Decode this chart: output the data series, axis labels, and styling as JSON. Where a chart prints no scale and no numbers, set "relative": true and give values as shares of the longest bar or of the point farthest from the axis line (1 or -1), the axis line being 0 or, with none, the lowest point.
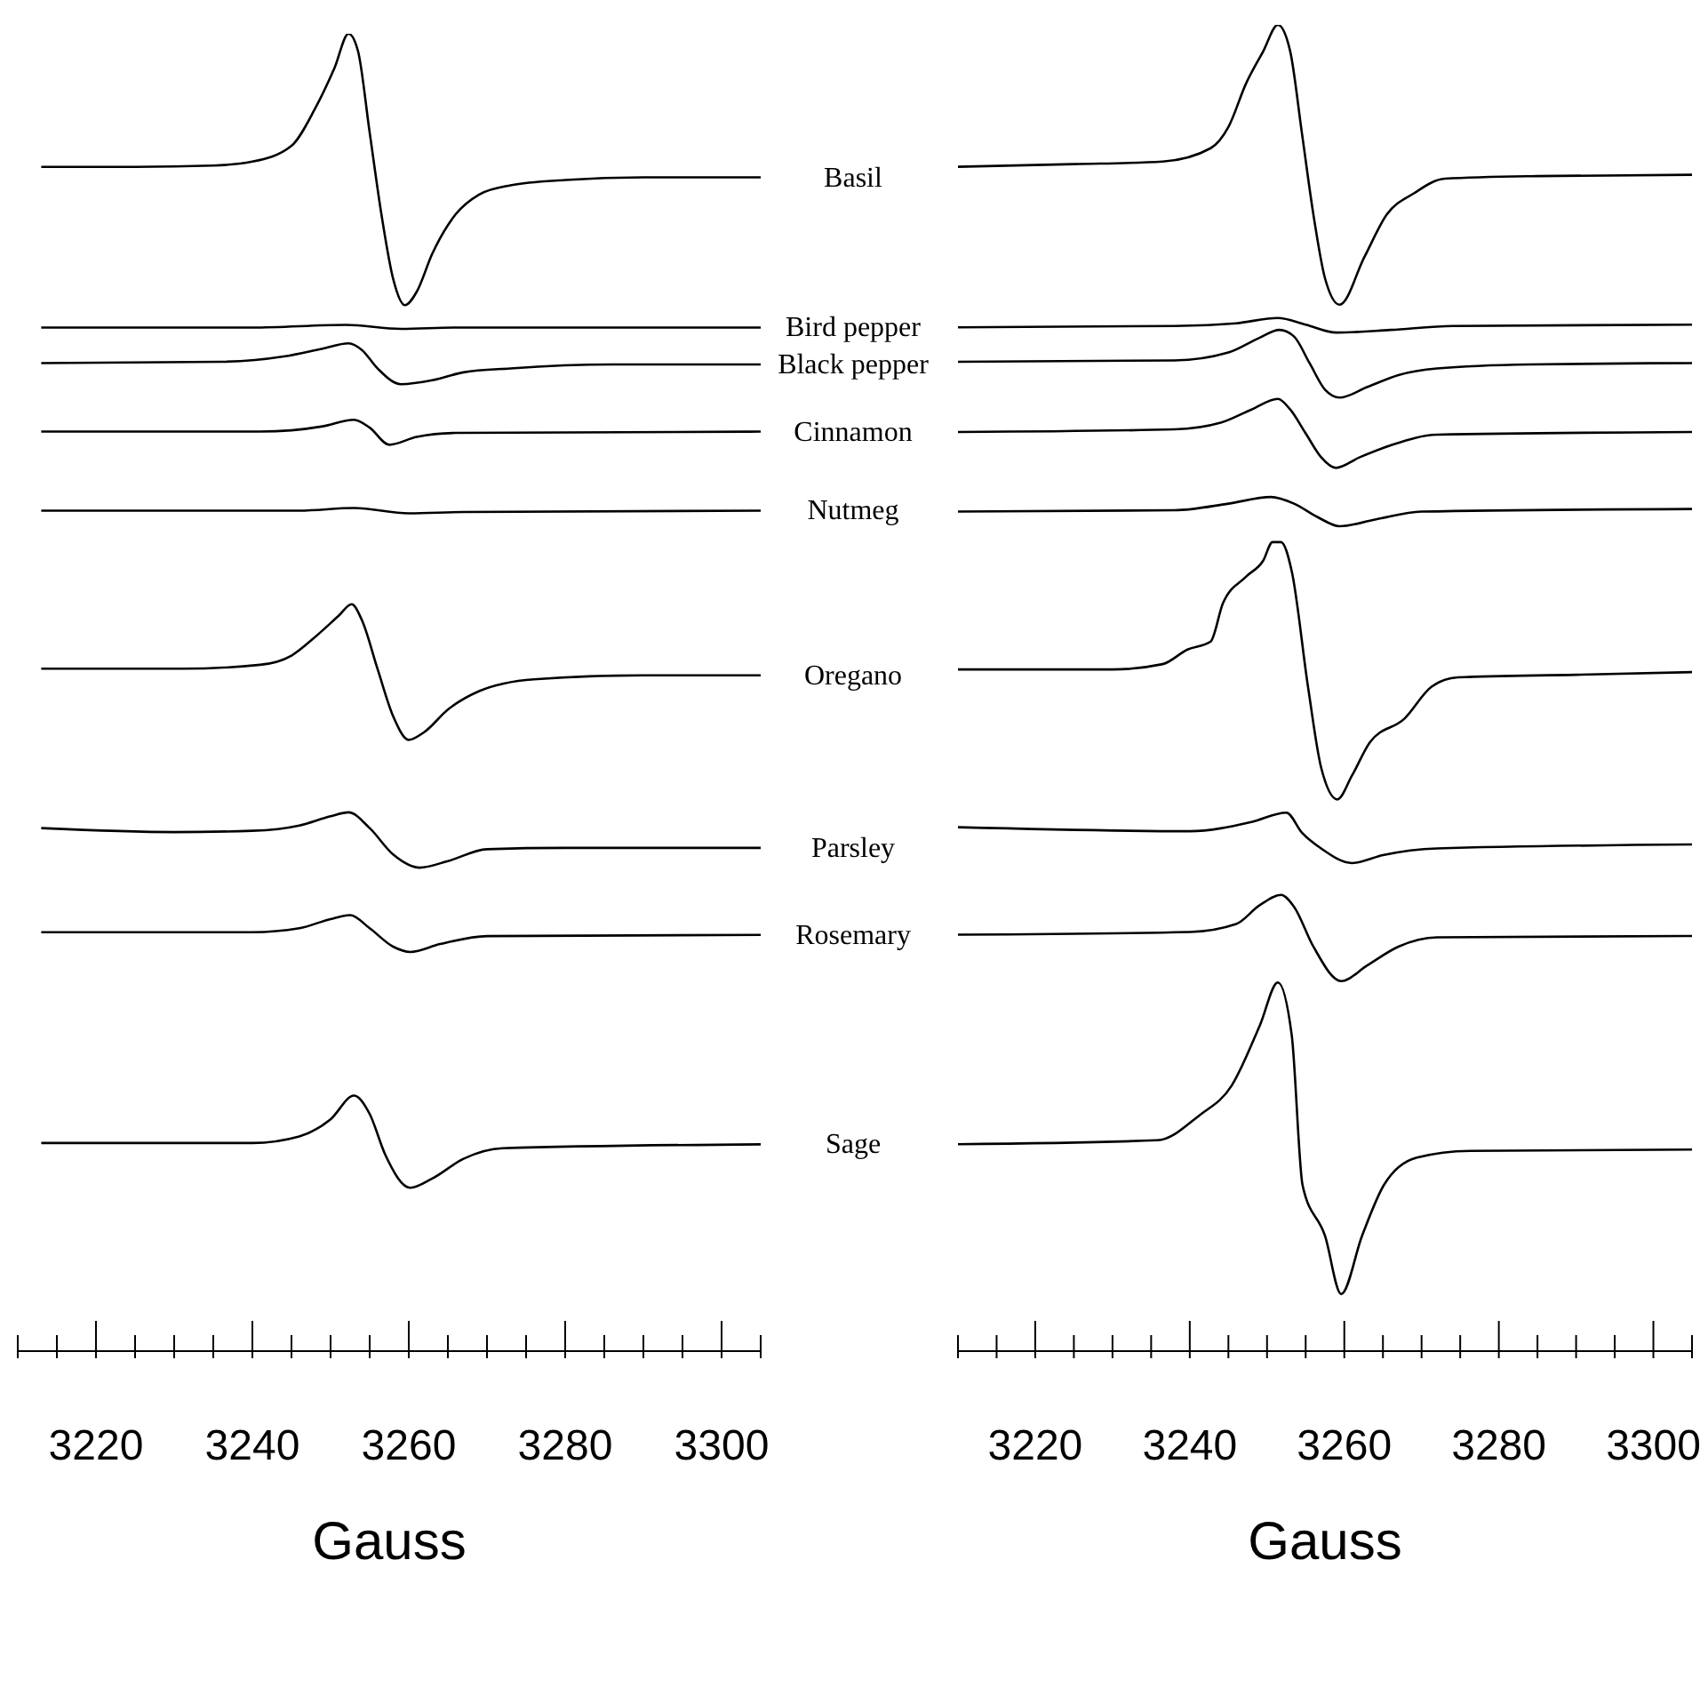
{
  "chart_data": [
    {
      "type": "line",
      "relative": true,
      "xlabel": "Gauss",
      "xlim": [
        3210,
        3305
      ],
      "tick_labels": "x",
      "xticks": [
        {
          "value": 3210,
          "label": null
        },
        {
          "value": 3215,
          "label": null
        },
        3220,
        {
          "value": 3225,
          "label": null
        },
        {
          "value": 3230,
          "label": null
        },
        {
          "value": 3235,
          "label": null
        },
        3240,
        {
          "value": 3245,
          "label": null
        },
        {
          "value": 3250,
          "label": null
        },
        {
          "value": 3255,
          "label": null
        },
        3260,
        {
          "value": 3265,
          "label": null
        },
        {
          "value": 3270,
          "label": null
        },
        {
          "value": 3275,
          "label": null
        },
        3280,
        {
          "value": 3285,
          "label": null
        },
        {
          "value": 3290,
          "label": null
        },
        {
          "value": 3295,
          "label": null
        },
        3300,
        {
          "value": 3305,
          "label": null
        }
      ],
      "series": [
        {
          "name": "Basil",
          "color": "#000000",
          "x": [
            3213,
            3225,
            3235,
            3240,
            3245,
            3248,
            3250.5,
            3252.3,
            3253.5,
            3255,
            3256.5,
            3258,
            3259.5,
            3261,
            3263,
            3266,
            3269,
            3273,
            3280,
            3290,
            3305
          ],
          "values": [
            0.899,
            0.899,
            0.9,
            0.903,
            0.915,
            0.943,
            0.974,
            1,
            0.987,
            0.925,
            0.863,
            0.814,
            0.794,
            0.804,
            0.833,
            0.863,
            0.878,
            0.885,
            0.889,
            0.891,
            0.891
          ]
        },
        {
          "name": "Bird pepper",
          "color": "#000000",
          "x": [
            3213,
            3240,
            3252,
            3259,
            3266,
            3305
          ],
          "values": [
            0.777,
            0.777,
            0.779,
            0.776,
            0.777,
            0.777
          ]
        },
        {
          "name": "Black pepper",
          "color": "#000000",
          "x": [
            3213,
            3236,
            3244,
            3249,
            3252.3,
            3254,
            3256,
            3259,
            3263,
            3267,
            3273,
            3286,
            3305
          ],
          "values": [
            0.75,
            0.751,
            0.755,
            0.761,
            0.765,
            0.76,
            0.746,
            0.734,
            0.737,
            0.743,
            0.746,
            0.749,
            0.749
          ]
        },
        {
          "name": "Cinnamon",
          "color": "#000000",
          "x": [
            3213,
            3241,
            3249,
            3253,
            3255,
            3257.5,
            3261,
            3266,
            3305
          ],
          "values": [
            0.698,
            0.698,
            0.702,
            0.707,
            0.701,
            0.688,
            0.694,
            0.697,
            0.698
          ]
        },
        {
          "name": "Nutmeg",
          "color": "#000000",
          "x": [
            3213,
            3246,
            3253,
            3260,
            3267,
            3305
          ],
          "values": [
            0.638,
            0.638,
            0.64,
            0.636,
            0.637,
            0.638
          ]
        },
        {
          "name": "Oregano",
          "color": "#000000",
          "x": [
            3213,
            3231,
            3241,
            3245,
            3248,
            3251,
            3252.7,
            3254,
            3256,
            3258,
            3260,
            3262,
            3265,
            3269,
            3276,
            3290,
            3305
          ],
          "values": [
            0.518,
            0.518,
            0.521,
            0.528,
            0.542,
            0.558,
            0.567,
            0.555,
            0.518,
            0.482,
            0.464,
            0.47,
            0.487,
            0.501,
            0.51,
            0.513,
            0.513
          ]
        },
        {
          "name": "Parsley",
          "color": "#000000",
          "x": [
            3213,
            3230,
            3240,
            3246,
            3250,
            3252.3,
            3255,
            3258,
            3261.4,
            3265,
            3270,
            3280,
            3305
          ],
          "values": [
            0.397,
            0.394,
            0.395,
            0.399,
            0.406,
            0.409,
            0.397,
            0.377,
            0.367,
            0.372,
            0.381,
            0.382,
            0.382
          ]
        },
        {
          "name": "Rosemary",
          "color": "#000000",
          "x": [
            3213,
            3240,
            3246,
            3250,
            3252.5,
            3255,
            3258,
            3260.2,
            3264,
            3270,
            3305
          ],
          "values": [
            0.318,
            0.318,
            0.321,
            0.328,
            0.331,
            0.321,
            0.307,
            0.303,
            0.309,
            0.315,
            0.316
          ]
        },
        {
          "name": "Sage",
          "color": "#000000",
          "x": [
            3213,
            3240,
            3246,
            3250,
            3253,
            3255,
            3257,
            3260.2,
            3263,
            3267,
            3272,
            3305
          ],
          "values": [
            0.158,
            0.158,
            0.163,
            0.176,
            0.194,
            0.18,
            0.149,
            0.124,
            0.131,
            0.146,
            0.154,
            0.157
          ]
        }
      ]
    },
    {
      "type": "line",
      "relative": true,
      "xlabel": "Gauss",
      "xlim": [
        3210,
        3305
      ],
      "tick_labels": "x",
      "xticks": [
        {
          "value": 3210,
          "label": null
        },
        {
          "value": 3215,
          "label": null
        },
        3220,
        {
          "value": 3225,
          "label": null
        },
        {
          "value": 3230,
          "label": null
        },
        {
          "value": 3235,
          "label": null
        },
        3240,
        {
          "value": 3245,
          "label": null
        },
        {
          "value": 3250,
          "label": null
        },
        {
          "value": 3255,
          "label": null
        },
        3260,
        {
          "value": 3265,
          "label": null
        },
        {
          "value": 3270,
          "label": null
        },
        {
          "value": 3275,
          "label": null
        },
        3280,
        {
          "value": 3285,
          "label": null
        },
        {
          "value": 3290,
          "label": null
        },
        {
          "value": 3295,
          "label": null
        },
        3300,
        {
          "value": 3305,
          "label": null
        }
      ],
      "series": [
        {
          "color": "#000000",
          "x": [
            3210,
            3225,
            3236.5,
            3242.7,
            3245,
            3247.3,
            3249.5,
            3251.4,
            3253,
            3254.5,
            3256,
            3257.5,
            3259.4,
            3262.6,
            3265.5,
            3269,
            3273,
            3285,
            3305
          ],
          "values": [
            0.893,
            0.895,
            0.897,
            0.907,
            0.923,
            0.956,
            0.98,
            1,
            0.98,
            0.919,
            0.857,
            0.809,
            0.789,
            0.825,
            0.857,
            0.873,
            0.884,
            0.886,
            0.887
          ]
        },
        {
          "color": "#000000",
          "x": [
            3210,
            3238,
            3246,
            3251.4,
            3255,
            3259,
            3266,
            3274,
            3305
          ],
          "values": [
            0.772,
            0.773,
            0.775,
            0.779,
            0.774,
            0.768,
            0.77,
            0.773,
            0.774
          ]
        },
        {
          "color": "#000000",
          "x": [
            3210,
            3238,
            3245,
            3249,
            3251.6,
            3253.5,
            3255.5,
            3257.5,
            3259.4,
            3263,
            3267,
            3272,
            3284,
            3305
          ],
          "values": [
            0.746,
            0.747,
            0.753,
            0.764,
            0.77,
            0.765,
            0.745,
            0.725,
            0.719,
            0.727,
            0.736,
            0.741,
            0.744,
            0.745
          ]
        },
        {
          "color": "#000000",
          "x": [
            3210,
            3238,
            3244,
            3248,
            3251.4,
            3253,
            3255,
            3257,
            3258.9,
            3262,
            3266,
            3272,
            3305
          ],
          "values": [
            0.693,
            0.695,
            0.7,
            0.71,
            0.718,
            0.71,
            0.692,
            0.674,
            0.666,
            0.674,
            0.683,
            0.691,
            0.693
          ]
        },
        {
          "color": "#000000",
          "x": [
            3210,
            3238,
            3245,
            3250.5,
            3253.5,
            3256.5,
            3259.4,
            3264,
            3270,
            3305
          ],
          "values": [
            0.633,
            0.634,
            0.639,
            0.644,
            0.639,
            0.629,
            0.622,
            0.627,
            0.633,
            0.635
          ]
        },
        {
          "color": "#000000",
          "x": [
            3210,
            3230,
            3236.5,
            3239.7,
            3242.7,
            3244.3,
            3247.3,
            3249.5,
            3250.7,
            3251.8,
            3253.2,
            3255.3,
            3257,
            3259.1,
            3261,
            3263.3,
            3267.8,
            3271.3,
            3274.7,
            3290,
            3305
          ],
          "values": [
            0.514,
            0.514,
            0.518,
            0.529,
            0.535,
            0.564,
            0.584,
            0.596,
            0.61,
            0.61,
            0.588,
            0.501,
            0.44,
            0.416,
            0.434,
            0.459,
            0.477,
            0.501,
            0.508,
            0.51,
            0.512
          ]
        },
        {
          "color": "#000000",
          "x": [
            3210,
            3240,
            3248,
            3252.5,
            3254.5,
            3257,
            3261,
            3265,
            3272,
            3305
          ],
          "values": [
            0.395,
            0.392,
            0.399,
            0.406,
            0.391,
            0.379,
            0.368,
            0.374,
            0.379,
            0.382
          ]
        },
        {
          "color": "#000000",
          "x": [
            3210,
            3240,
            3246,
            3249,
            3251.8,
            3253.5,
            3256,
            3259.6,
            3263,
            3267,
            3272,
            3305
          ],
          "values": [
            0.314,
            0.316,
            0.322,
            0.336,
            0.344,
            0.335,
            0.305,
            0.279,
            0.291,
            0.305,
            0.312,
            0.313
          ]
        },
        {
          "color": "#000000",
          "x": [
            3210,
            3235.8,
            3241.3,
            3245.4,
            3249.1,
            3251.4,
            3253.2,
            3254.6,
            3257.5,
            3259.6,
            3262.3,
            3265.1,
            3269.4,
            3276.3,
            3305
          ],
          "values": [
            0.156,
            0.159,
            0.178,
            0.2,
            0.246,
            0.278,
            0.238,
            0.125,
            0.087,
            0.043,
            0.087,
            0.125,
            0.146,
            0.151,
            0.152
          ]
        }
      ]
    }
  ]
}
